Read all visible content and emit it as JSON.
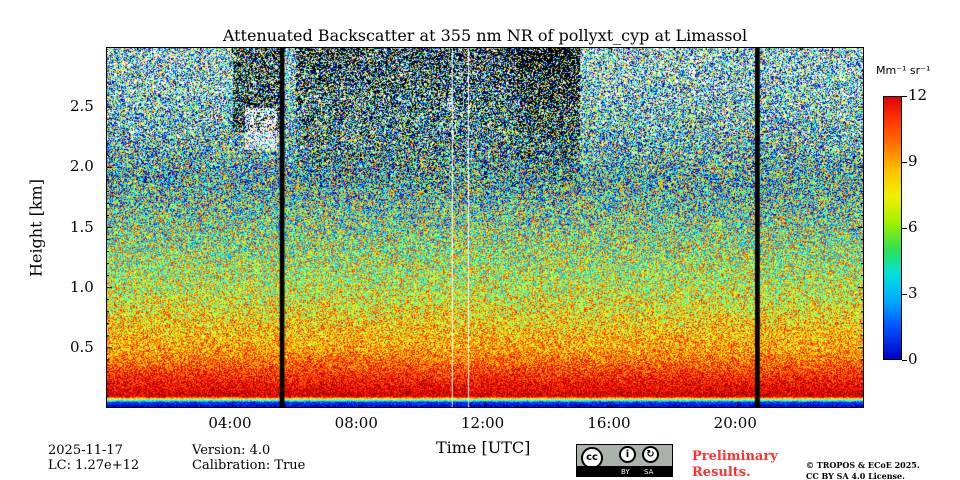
{
  "chart_data": {
    "type": "heatmap",
    "title": "Attenuated Backscatter at 355 nm NR of pollyxt_cyp at Limassol",
    "xlabel": "Time [UTC]",
    "ylabel": "Height [km]",
    "xlim_hours": [
      0,
      24
    ],
    "ylim_km": [
      0,
      3.0
    ],
    "xticks": [
      {
        "value": 4,
        "label": "04:00"
      },
      {
        "value": 8,
        "label": "08:00"
      },
      {
        "value": 12,
        "label": "12:00"
      },
      {
        "value": 16,
        "label": "16:00"
      },
      {
        "value": 20,
        "label": "20:00"
      }
    ],
    "yticks": [
      {
        "value": 0.5,
        "label": "0.5"
      },
      {
        "value": 1.0,
        "label": "1.0"
      },
      {
        "value": 1.5,
        "label": "1.5"
      },
      {
        "value": 2.0,
        "label": "2.0"
      },
      {
        "value": 2.5,
        "label": "2.5"
      }
    ],
    "colorbar": {
      "unit": "Mm⁻¹ sr⁻¹",
      "range": [
        0,
        12
      ],
      "ticks": [
        {
          "value": 0,
          "label": "0"
        },
        {
          "value": 3,
          "label": "3"
        },
        {
          "value": 6,
          "label": "6"
        },
        {
          "value": 9,
          "label": "9"
        },
        {
          "value": 12,
          "label": "12"
        }
      ],
      "colormap": "jet"
    },
    "profile_mean_by_height": {
      "heights_km": [
        0.0,
        0.05,
        0.1,
        0.2,
        0.5,
        1.0,
        1.5,
        2.0,
        2.5,
        3.0
      ],
      "values": [
        1,
        2,
        11,
        10.5,
        8.5,
        7,
        6,
        4.5,
        3,
        2
      ]
    },
    "no_data_periods_hours": [
      [
        5.5,
        5.65
      ],
      [
        20.55,
        20.7
      ]
    ],
    "thin_gaps_hours": [
      10.95,
      11.46
    ],
    "cloud_events": [
      {
        "time_hours": [
          4.0,
          5.5
        ],
        "height_km": [
          2.2,
          2.6
        ],
        "note": "cloud"
      }
    ]
  },
  "footer": {
    "date": "2025-11-17",
    "lc": "LC: 1.27e+12",
    "version": "Version: 4.0",
    "calibration": "Calibration: True",
    "license_badge": {
      "cc": "cc",
      "by": "BY",
      "sa": "SA"
    },
    "preliminary_line1": "Preliminary",
    "preliminary_line2": "Results.",
    "copyright_line1": "© TROPOS & ECoE 2025.",
    "copyright_line2": "CC BY SA 4.0 License."
  }
}
